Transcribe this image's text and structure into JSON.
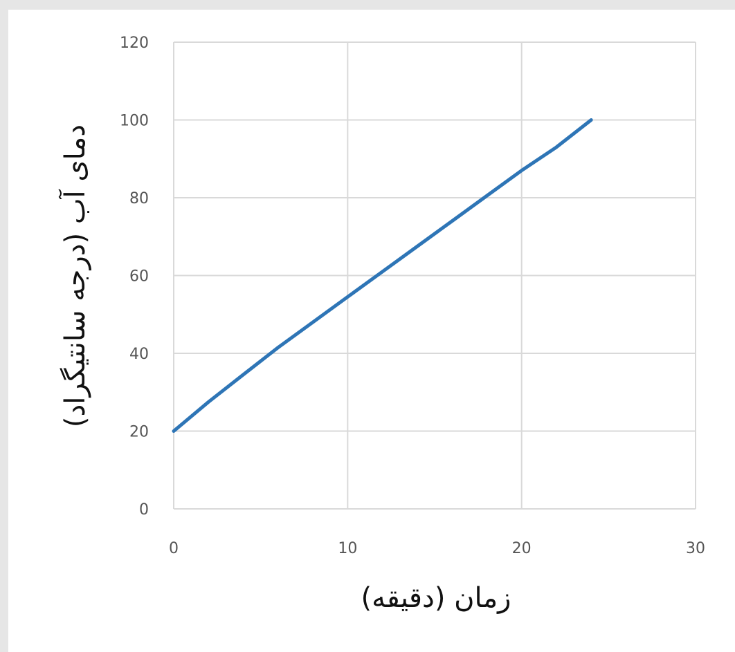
{
  "chart_data": {
    "type": "line",
    "title": "",
    "xlabel": "زمان (دقیقه)",
    "ylabel": "دمای آب (درجه سانتیگراد)",
    "xlim": [
      0,
      30
    ],
    "ylim": [
      0,
      120
    ],
    "xticks": [
      0,
      10,
      20,
      30
    ],
    "yticks": [
      0,
      20,
      40,
      60,
      80,
      100,
      120
    ],
    "xtick_labels": [
      "0",
      "10",
      "20",
      "30"
    ],
    "ytick_labels": [
      "0",
      "20",
      "40",
      "60",
      "80",
      "100",
      "120"
    ],
    "grid": true,
    "line_color": "#2e75b6",
    "grid_color": "#d9d9d9",
    "series": [
      {
        "x": [
          0,
          2,
          4,
          6,
          8,
          10,
          12,
          14,
          16,
          18,
          20,
          22,
          24
        ],
        "y": [
          20,
          27.5,
          34.5,
          41.5,
          48,
          54.5,
          61,
          67.5,
          74,
          80.5,
          87,
          93,
          100
        ]
      }
    ]
  }
}
